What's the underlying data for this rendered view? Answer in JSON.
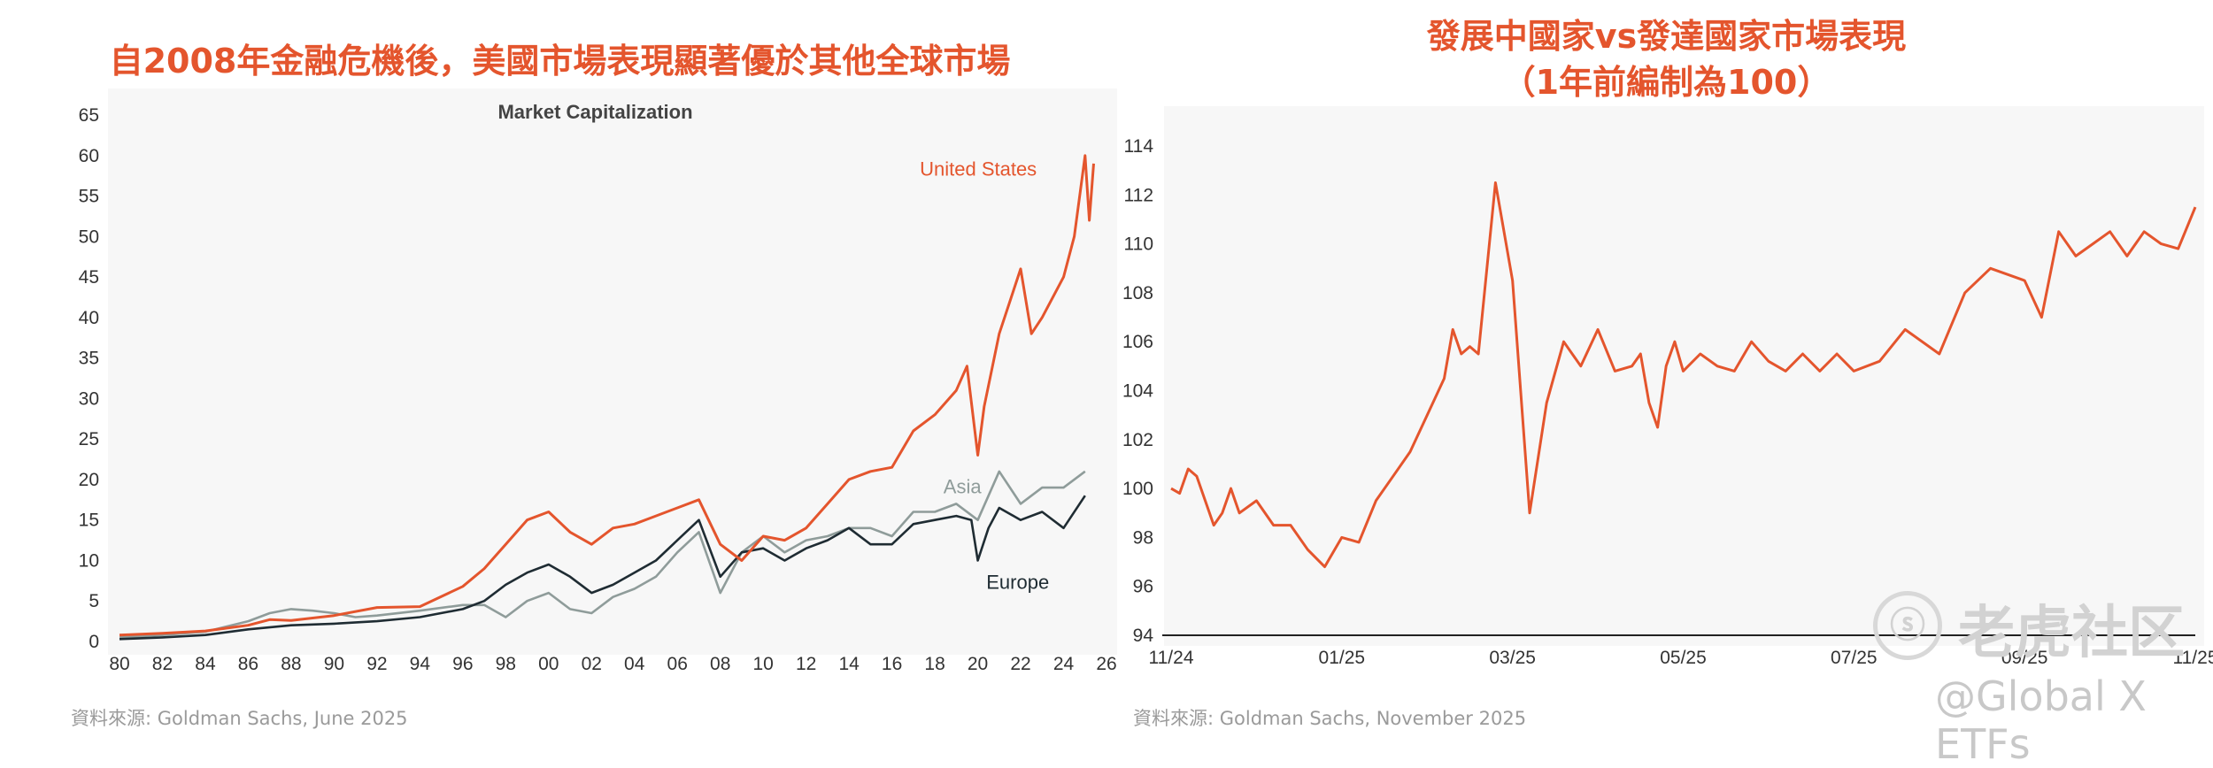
{
  "left_panel": {
    "heading": "自2008年金融危機後，美國市場表現顯著優於其他全球市場",
    "source": "資料來源: Goldman Sachs, June 2025"
  },
  "right_panel": {
    "heading_line1": "發展中國家vs發達國家市場表現",
    "heading_line2": "（1年前編制為100）",
    "source": "資料來源: Goldman Sachs, November 2025"
  },
  "watermark": {
    "logo_text": "老虎社区",
    "handle": "@Global X ETFs",
    "logo_mark": "ⓢ"
  },
  "colors": {
    "us": "#e4552d",
    "asia": "#8f9c9a",
    "europe": "#1f2c33",
    "em_dm": "#e4552d",
    "heading": "#e4552d"
  },
  "chart_data": [
    {
      "type": "line",
      "title": "Market Capitalization",
      "xlabel": "",
      "ylabel": "",
      "x_tick_labels": [
        "80",
        "82",
        "84",
        "86",
        "88",
        "90",
        "92",
        "94",
        "96",
        "98",
        "00",
        "02",
        "04",
        "06",
        "08",
        "10",
        "12",
        "14",
        "16",
        "18",
        "20",
        "22",
        "24",
        "26"
      ],
      "y_tick_labels": [
        "0",
        "5",
        "10",
        "15",
        "20",
        "25",
        "30",
        "35",
        "40",
        "45",
        "50",
        "55",
        "60",
        "65"
      ],
      "xlim": [
        1980,
        2026
      ],
      "ylim": [
        0,
        65
      ],
      "grid": false,
      "series": [
        {
          "name": "United States",
          "x": [
            1980,
            1982,
            1984,
            1986,
            1987,
            1988,
            1990,
            1992,
            1994,
            1996,
            1997,
            1998,
            1999,
            2000,
            2001,
            2002,
            2003,
            2004,
            2005,
            2006,
            2007,
            2008,
            2009,
            2010,
            2011,
            2012,
            2013,
            2014,
            2015,
            2016,
            2017,
            2018,
            2019,
            2019.5,
            2020,
            2020.3,
            2021,
            2022,
            2022.5,
            2023,
            2024,
            2024.5,
            2025,
            2025.2,
            2025.4
          ],
          "y": [
            0.8,
            1,
            1.3,
            2,
            2.7,
            2.6,
            3.2,
            4.2,
            4.3,
            6.8,
            9,
            12,
            15,
            16,
            13.5,
            12,
            14,
            14.5,
            15.5,
            16.5,
            17.5,
            12,
            10,
            13,
            12.5,
            14,
            17,
            20,
            21,
            21.5,
            26,
            28,
            31,
            34,
            23,
            29,
            38,
            46,
            38,
            40,
            45,
            50,
            60,
            52,
            59
          ],
          "color_key": "us"
        },
        {
          "name": "Asia",
          "x": [
            1980,
            1982,
            1984,
            1986,
            1987,
            1988,
            1989,
            1990,
            1991,
            1992,
            1994,
            1996,
            1997,
            1998,
            1999,
            2000,
            2001,
            2002,
            2003,
            2004,
            2005,
            2006,
            2007,
            2008,
            2009,
            2010,
            2011,
            2012,
            2013,
            2014,
            2015,
            2016,
            2017,
            2018,
            2019,
            2020,
            2021,
            2022,
            2023,
            2024,
            2025
          ],
          "y": [
            0.5,
            0.8,
            1.2,
            2.5,
            3.5,
            4,
            3.8,
            3.5,
            3,
            3.2,
            3.8,
            4.5,
            4.5,
            3,
            5,
            6,
            4,
            3.5,
            5.5,
            6.5,
            8,
            11,
            13.5,
            6,
            11,
            13,
            11,
            12.5,
            13,
            14,
            14,
            13,
            16,
            16,
            17,
            15,
            21,
            17,
            19,
            19,
            21
          ],
          "color_key": "asia"
        },
        {
          "name": "Europe",
          "x": [
            1980,
            1982,
            1984,
            1986,
            1988,
            1990,
            1992,
            1994,
            1996,
            1997,
            1998,
            1999,
            2000,
            2001,
            2002,
            2003,
            2004,
            2005,
            2006,
            2007,
            2008,
            2009,
            2010,
            2011,
            2012,
            2013,
            2014,
            2015,
            2016,
            2017,
            2018,
            2019,
            2019.7,
            2020,
            2020.5,
            2021,
            2022,
            2023,
            2024,
            2025
          ],
          "y": [
            0.3,
            0.5,
            0.8,
            1.5,
            2,
            2.2,
            2.5,
            3,
            4,
            5,
            7,
            8.5,
            9.5,
            8,
            6,
            7,
            8.5,
            10,
            12.5,
            15,
            8,
            11,
            11.5,
            10,
            11.5,
            12.5,
            14,
            12,
            12,
            14.5,
            15,
            15.5,
            15,
            10,
            14,
            16.5,
            15,
            16,
            14,
            18
          ],
          "color_key": "europe"
        }
      ],
      "annotations": [
        "United States",
        "Asia",
        "Europe"
      ]
    },
    {
      "type": "line",
      "title": "",
      "xlabel": "",
      "ylabel": "",
      "x_tick_labels": [
        "11/24",
        "01/25",
        "03/25",
        "05/25",
        "07/25",
        "09/25",
        "11/25"
      ],
      "y_tick_labels": [
        "94",
        "96",
        "98",
        "100",
        "102",
        "104",
        "106",
        "108",
        "110",
        "112",
        "114"
      ],
      "xlim": [
        0,
        12
      ],
      "ylim": [
        94,
        114
      ],
      "grid": false,
      "series": [
        {
          "name": "",
          "x": [
            0,
            0.1,
            0.2,
            0.3,
            0.5,
            0.6,
            0.7,
            0.8,
            1.0,
            1.2,
            1.4,
            1.6,
            1.8,
            2.0,
            2.2,
            2.4,
            2.6,
            2.8,
            3.0,
            3.2,
            3.3,
            3.4,
            3.5,
            3.6,
            3.8,
            4.0,
            4.2,
            4.4,
            4.6,
            4.8,
            5.0,
            5.2,
            5.4,
            5.5,
            5.6,
            5.7,
            5.8,
            5.9,
            6.0,
            6.2,
            6.4,
            6.6,
            6.8,
            7.0,
            7.2,
            7.4,
            7.6,
            7.8,
            8.0,
            8.3,
            8.6,
            9.0,
            9.3,
            9.6,
            10.0,
            10.2,
            10.4,
            10.6,
            10.8,
            11.0,
            11.2,
            11.4,
            11.6,
            11.8,
            12.0
          ],
          "y": [
            100,
            99.8,
            100.8,
            100.5,
            98.5,
            99,
            100,
            99,
            99.5,
            98.5,
            98.5,
            97.5,
            96.8,
            98,
            97.8,
            99.5,
            100.5,
            101.5,
            103,
            104.5,
            106.5,
            105.5,
            105.8,
            105.5,
            112.5,
            108.5,
            99,
            103.5,
            106,
            105,
            106.5,
            104.8,
            105,
            105.5,
            103.5,
            102.5,
            105,
            106,
            104.8,
            105.5,
            105,
            104.8,
            106,
            105.2,
            104.8,
            105.5,
            104.8,
            105.5,
            104.8,
            105.2,
            106.5,
            105.5,
            108,
            109,
            108.5,
            107,
            110.5,
            109.5,
            110,
            110.5,
            109.5,
            110.5,
            110,
            109.8,
            111.5
          ],
          "color_key": "em_dm"
        }
      ]
    }
  ]
}
